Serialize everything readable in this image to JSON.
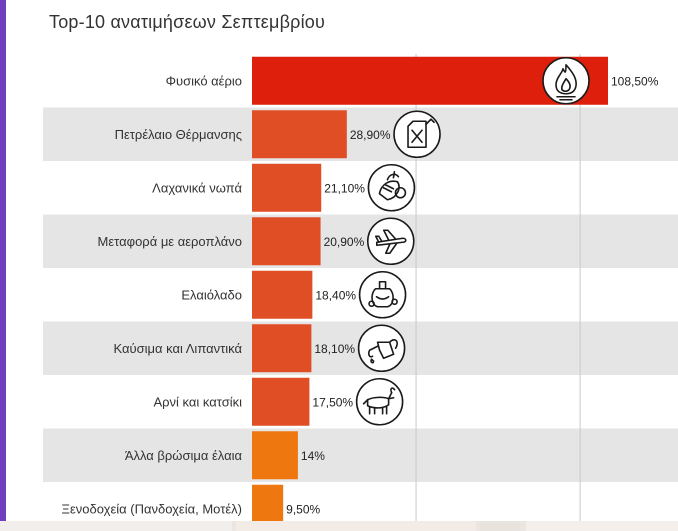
{
  "chart_data": {
    "type": "bar",
    "orientation": "horizontal",
    "title": "Top-10 ανατιμήσεων Σεπτεμβρίου",
    "xlabel": "",
    "ylabel": "",
    "xlim": [
      0,
      130
    ],
    "categories": [
      "Φυσικό αέριο",
      "Πετρέλαιο Θέρμανσης",
      "Λαχανικά νωπά",
      "Μεταφορά με αεροπλάνο",
      "Ελαιόλαδο",
      "Καύσιμα και Λιπαντικά",
      "Αρνί και κατσίκι",
      "Άλλα βρώσιμα έλαια",
      "Ξενοδοχεία (Πανδοχεία, Μοτέλ)"
    ],
    "values": [
      108.5,
      28.9,
      21.1,
      20.9,
      18.4,
      18.1,
      17.5,
      14.0,
      9.5
    ],
    "value_labels": [
      "108,50%",
      "28,90%",
      "21,10%",
      "20,90%",
      "18,40%",
      "18,10%",
      "17,50%",
      "14%",
      "9,50%"
    ],
    "bar_colors": [
      "#dd1f0c",
      "#e04e26",
      "#e04e26",
      "#e04e26",
      "#e04e26",
      "#e04e26",
      "#e04e26",
      "#ef7710",
      "#ef7710"
    ],
    "icons": [
      "flame-icon",
      "fuel-canister-icon",
      "vegetables-icon",
      "airplane-icon",
      "olive-oil-icon",
      "fuel-pump-nozzle-icon",
      "goat-icon",
      "",
      ""
    ],
    "row_stripes": true,
    "grid": true
  }
}
